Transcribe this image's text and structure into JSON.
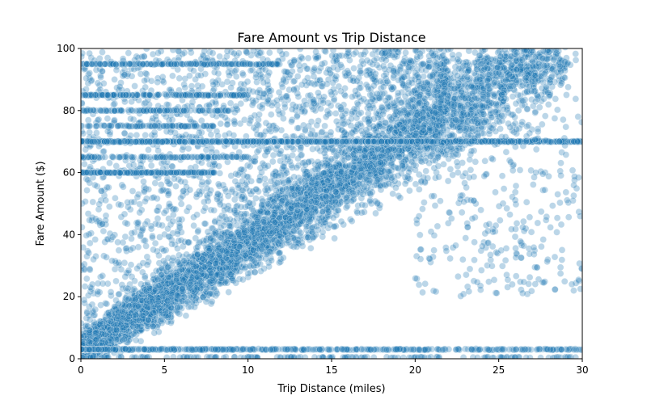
{
  "chart_data": {
    "type": "scatter",
    "title": "Fare Amount vs Trip Distance",
    "xlabel": "Trip Distance (miles)",
    "ylabel": "Fare Amount ($)",
    "xlim": [
      0,
      30
    ],
    "ylim": [
      0,
      100
    ],
    "xticks": [
      0,
      5,
      10,
      15,
      20,
      25,
      30
    ],
    "yticks": [
      0,
      20,
      40,
      60,
      80,
      100
    ],
    "grid": false,
    "point_color": "#1f77b4",
    "point_alpha": 0.3,
    "series": [
      {
        "description_of_structure": "",
        "points": []
      }
    ]
  }
}
